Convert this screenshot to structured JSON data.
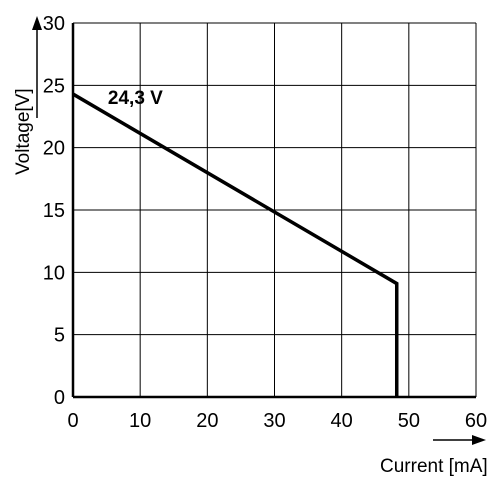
{
  "chart_data": {
    "type": "line",
    "xlabel": "Current [mA]",
    "ylabel": "Voltage[V]",
    "xlim": [
      0,
      60
    ],
    "ylim": [
      0,
      30
    ],
    "x_ticks": [
      "0",
      "10",
      "20",
      "30",
      "40",
      "50",
      "60"
    ],
    "y_ticks": [
      "0",
      "5",
      "10",
      "15",
      "20",
      "25",
      "30"
    ],
    "grid": true,
    "series": [
      {
        "x": [
          0,
          48.2,
          48.2
        ],
        "y": [
          24.3,
          9.1,
          0
        ]
      }
    ],
    "annotations": [
      {
        "text": "24,3 V",
        "x": 5.2,
        "y": 24.3
      }
    ],
    "colors": {
      "line": "#000000",
      "grid": "#000000"
    }
  }
}
